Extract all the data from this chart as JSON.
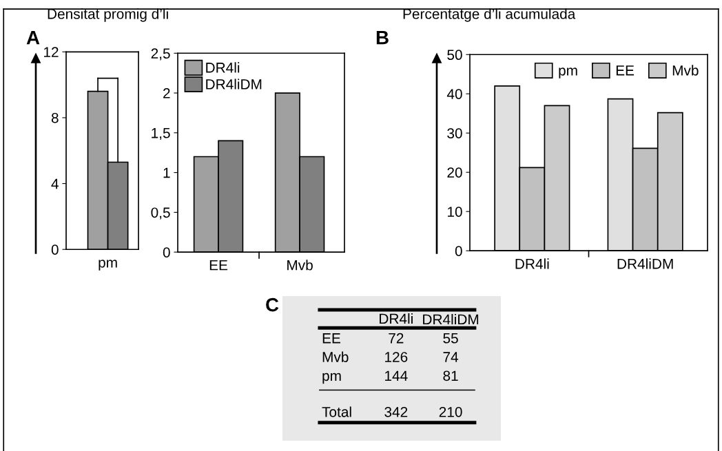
{
  "chart_data": [
    {
      "type": "bar",
      "title": "Densitat promig d’li",
      "annotations": [
        "A"
      ],
      "categories": [
        "pm"
      ],
      "series": [
        {
          "color": "#a0a0a0",
          "values": [
            9.6
          ],
          "errors": [
            [
              9.6,
              10.4
            ]
          ]
        },
        {
          "color": "#808080",
          "values": [
            5.3
          ],
          "errors": [
            [
              5.3,
              10.4
            ]
          ]
        }
      ],
      "ylim": [
        0,
        12
      ],
      "yticks": [
        0,
        4,
        8,
        12
      ],
      "legend": false
    },
    {
      "type": "bar",
      "categories": [
        "EE",
        "Mvb"
      ],
      "series": [
        {
          "name": "DR4li",
          "color": "#a0a0a0",
          "values": [
            1.2,
            2.0
          ]
        },
        {
          "name": "DR4liDM",
          "color": "#808080",
          "values": [
            1.4,
            1.2
          ]
        }
      ],
      "ylim": [
        0,
        2.5
      ],
      "yticks": [
        0,
        {
          "value": 0.5,
          "label": "0,5"
        },
        1,
        {
          "value": 1.5,
          "label": "1,5"
        },
        2,
        {
          "value": 2.5,
          "label": "2,5"
        }
      ],
      "legend": "top left"
    },
    {
      "type": "bar",
      "title": "Percentatge d’li acumulada",
      "annotations": [
        "B"
      ],
      "categories": [
        "DR4li",
        "DR4liDM"
      ],
      "series": [
        {
          "name": "pm",
          "color": "#e0e0e0",
          "values": [
            42,
            38.7
          ]
        },
        {
          "name": "EE",
          "color": "#c0c0c0",
          "values": [
            21.2,
            26.1
          ]
        },
        {
          "name": "Mvb",
          "color": "#cbcbcb",
          "values": [
            37,
            35.2
          ]
        }
      ],
      "ylim": [
        0,
        50
      ],
      "yticks": [
        0,
        10,
        20,
        30,
        40,
        50
      ],
      "legend": "top right"
    },
    {
      "type": "other",
      "annotations": [
        "C",
        "DR4li",
        "DR4liDM",
        "EE",
        "72",
        "55",
        "Mvb",
        "126",
        "74",
        "pm",
        "144",
        "81",
        "Total",
        "342",
        "210"
      ]
    }
  ]
}
